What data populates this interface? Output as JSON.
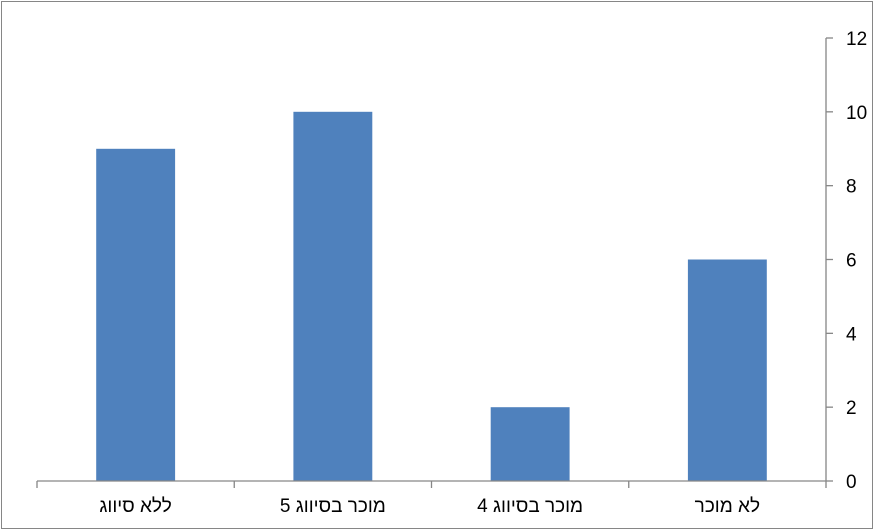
{
  "chart_data": {
    "type": "bar",
    "categories": [
      "ללא סיווג",
      "מוכר בסיווג 5",
      "מוכר בסיווג 4",
      "לא מוכר"
    ],
    "values": [
      9,
      10,
      2,
      6
    ],
    "y_ticks": [
      "0",
      "2",
      "4",
      "6",
      "8",
      "10",
      "12"
    ],
    "ylim": [
      0,
      12
    ],
    "y_axis_side": "right",
    "grid": false,
    "legend": "none",
    "title": "",
    "xlabel": "",
    "ylabel": "",
    "colors": {
      "bar": "#4F81BD",
      "axis": "#868686",
      "frame": "#868686"
    }
  }
}
